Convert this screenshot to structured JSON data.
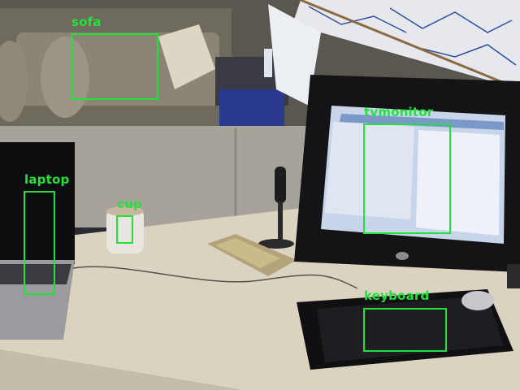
{
  "detections": [
    {
      "label": "sofa"
    },
    {
      "label": "tvmonitor"
    },
    {
      "label": "laptop"
    },
    {
      "label": "cup"
    },
    {
      "label": "keyboard"
    }
  ],
  "colors": {
    "box": "#22e23a",
    "desk": "#d9d3c0",
    "partition": "#a7a39a",
    "whiteboard": "#e6e8ee",
    "monitor_bezel": "#141416",
    "screen": "#c8d4ea"
  }
}
